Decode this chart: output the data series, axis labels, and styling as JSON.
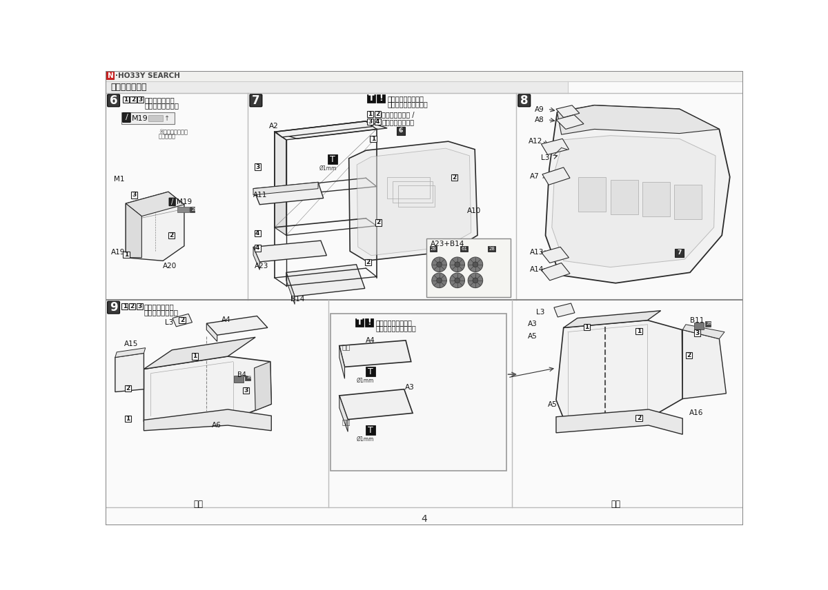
{
  "bg_color": "#ffffff",
  "line_color": "#2a2a2a",
  "light_fill": "#f0f0f0",
  "mid_fill": "#d8d8d8",
  "dark_fill": "#444444",
  "very_light": "#f8f8f8",
  "header_text": "船体の組み立て",
  "page_number": "4",
  "step6_instr1": "の番号順に組み",
  "step6_instr2": "立ててください。",
  "step7_note1": "組み立てる前に必ず",
  "step7_note2": "穴を開けてください。",
  "step7_instr1": "の番号順に組み /",
  "step7_instr2": "立ててください。",
  "step9_instr1": "の番号順に組み",
  "step9_instr2": "立ててください。",
  "step9_note1": "組み立てる前に必ず",
  "step9_note2": "穴を開けてください。",
  "note_orient": "※向きに注意して",
  "note_orient2": "ください。",
  "right_side": "右側",
  "left_side": "左側",
  "logo_n_color": "#cc2222",
  "grid_color": "#bbbbbb",
  "section_divider": "#888888"
}
